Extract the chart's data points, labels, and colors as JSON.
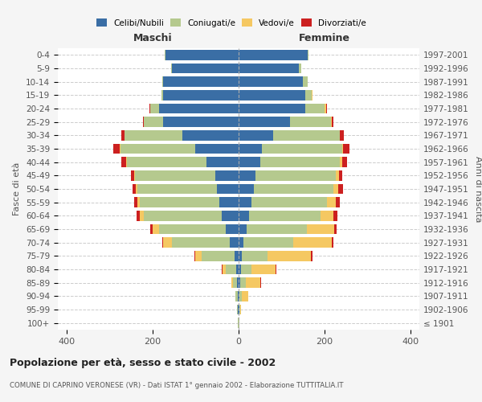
{
  "age_groups": [
    "100+",
    "95-99",
    "90-94",
    "85-89",
    "80-84",
    "75-79",
    "70-74",
    "65-69",
    "60-64",
    "55-59",
    "50-54",
    "45-49",
    "40-44",
    "35-39",
    "30-34",
    "25-29",
    "20-24",
    "15-19",
    "10-14",
    "5-9",
    "0-4"
  ],
  "birth_years": [
    "≤ 1901",
    "1902-1906",
    "1907-1911",
    "1912-1916",
    "1917-1921",
    "1922-1926",
    "1927-1931",
    "1932-1936",
    "1937-1941",
    "1942-1946",
    "1947-1951",
    "1952-1956",
    "1957-1961",
    "1962-1966",
    "1967-1971",
    "1972-1976",
    "1977-1981",
    "1982-1986",
    "1987-1991",
    "1992-1996",
    "1997-2001"
  ],
  "males": {
    "celibi": [
      0,
      1,
      2,
      3,
      5,
      10,
      20,
      30,
      40,
      45,
      50,
      55,
      75,
      100,
      130,
      175,
      185,
      175,
      175,
      155,
      170
    ],
    "coniugati": [
      1,
      2,
      5,
      10,
      25,
      75,
      135,
      155,
      180,
      185,
      185,
      185,
      185,
      175,
      135,
      45,
      20,
      5,
      3,
      2,
      1
    ],
    "vedovi": [
      0,
      0,
      1,
      3,
      8,
      15,
      20,
      15,
      10,
      5,
      3,
      2,
      1,
      1,
      0,
      0,
      0,
      0,
      0,
      0,
      0
    ],
    "divorziati": [
      0,
      0,
      0,
      1,
      1,
      2,
      3,
      5,
      8,
      8,
      8,
      8,
      12,
      15,
      8,
      2,
      2,
      0,
      0,
      0,
      0
    ]
  },
  "females": {
    "nubili": [
      0,
      1,
      2,
      4,
      5,
      8,
      12,
      18,
      25,
      30,
      35,
      40,
      50,
      55,
      80,
      120,
      155,
      155,
      150,
      140,
      160
    ],
    "coniugate": [
      1,
      3,
      5,
      12,
      25,
      60,
      115,
      140,
      165,
      175,
      185,
      185,
      185,
      185,
      155,
      95,
      45,
      15,
      10,
      5,
      2
    ],
    "vedove": [
      0,
      2,
      15,
      35,
      55,
      100,
      90,
      65,
      30,
      20,
      12,
      8,
      5,
      3,
      1,
      2,
      3,
      1,
      0,
      0,
      0
    ],
    "divorziate": [
      0,
      0,
      0,
      1,
      2,
      3,
      4,
      5,
      10,
      10,
      10,
      8,
      12,
      15,
      8,
      3,
      2,
      0,
      0,
      0,
      0
    ]
  },
  "colors": {
    "celibi": "#3a6ea5",
    "coniugati": "#b5c98e",
    "vedovi": "#f5c862",
    "divorziati": "#cc2020"
  },
  "title": "Popolazione per età, sesso e stato civile - 2002",
  "subtitle": "COMUNE DI CAPRINO VERONESE (VR) - Dati ISTAT 1° gennaio 2002 - Elaborazione TUTTITALIA.IT",
  "ylabel_left": "Fasce di età",
  "ylabel_right": "Anni di nascita",
  "xlabel_left": "Maschi",
  "xlabel_right": "Femmine",
  "xlim": 420,
  "bg_color": "#f5f5f5",
  "plot_bg": "#ffffff"
}
